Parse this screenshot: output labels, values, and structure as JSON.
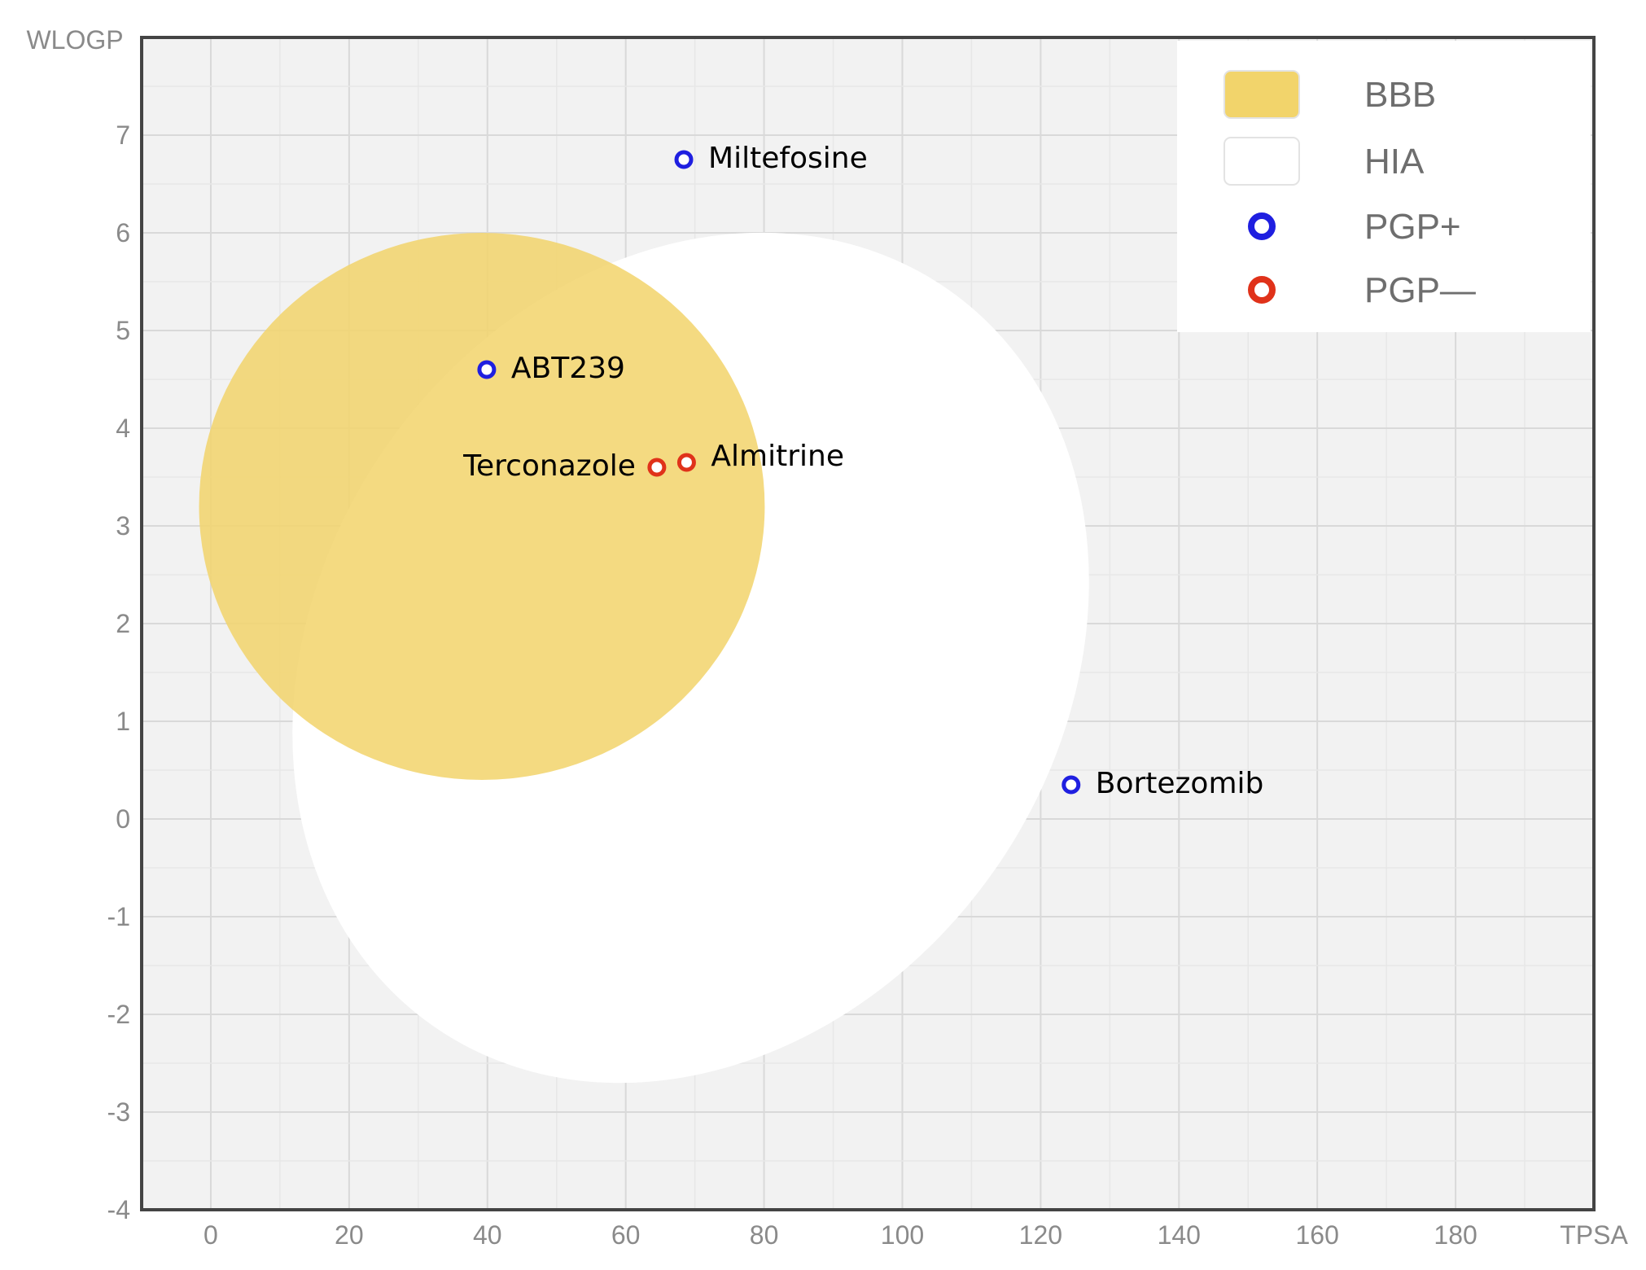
{
  "chart_data": {
    "type": "scatter",
    "xlabel": "TPSA",
    "ylabel": "WLOGP",
    "xlim": [
      -10,
      200
    ],
    "ylim": [
      -4,
      8
    ],
    "x_ticks": [
      "0",
      "20",
      "40",
      "60",
      "80",
      "100",
      "120",
      "140",
      "160",
      "180"
    ],
    "y_ticks": [
      "-4",
      "-3",
      "-2",
      "-1",
      "0",
      "1",
      "2",
      "3",
      "4",
      "5",
      "6",
      "7"
    ],
    "grid": true,
    "legend_position": "top-right",
    "regions": [
      {
        "name": "HIA",
        "color": "#ffffff",
        "center": [
          69.4,
          1.65
        ],
        "radii": [
          53.6,
          4.6
        ],
        "rotation_deg": 35
      },
      {
        "name": "BBB",
        "color": "#f2d46b",
        "center": [
          39.2,
          3.2
        ],
        "radii": [
          40.9,
          2.8
        ],
        "rotation_deg": 0
      }
    ],
    "series": [
      {
        "name": "PGP+",
        "color": "#1f1fe0",
        "points": [
          {
            "label": "Miltefosine",
            "x": 68.4,
            "y": 6.75
          },
          {
            "label": "ABT239",
            "x": 39.9,
            "y": 4.6
          },
          {
            "label": "Bortezomib",
            "x": 124.4,
            "y": 0.35
          }
        ]
      },
      {
        "name": "PGP—",
        "color": "#e0321a",
        "points": [
          {
            "label": "Terconazole",
            "x": 64.5,
            "y": 3.6
          },
          {
            "label": "Almitrine",
            "x": 68.8,
            "y": 3.65
          }
        ]
      }
    ],
    "legend": [
      {
        "label": "BBB",
        "swatch": "fill",
        "color": "#f2d46b"
      },
      {
        "label": "HIA",
        "swatch": "fill",
        "color": "#ffffff"
      },
      {
        "label": "PGP+",
        "swatch": "ring",
        "color": "#1f1fe0"
      },
      {
        "label": "PGP—",
        "swatch": "ring",
        "color": "#e0321a"
      }
    ]
  }
}
